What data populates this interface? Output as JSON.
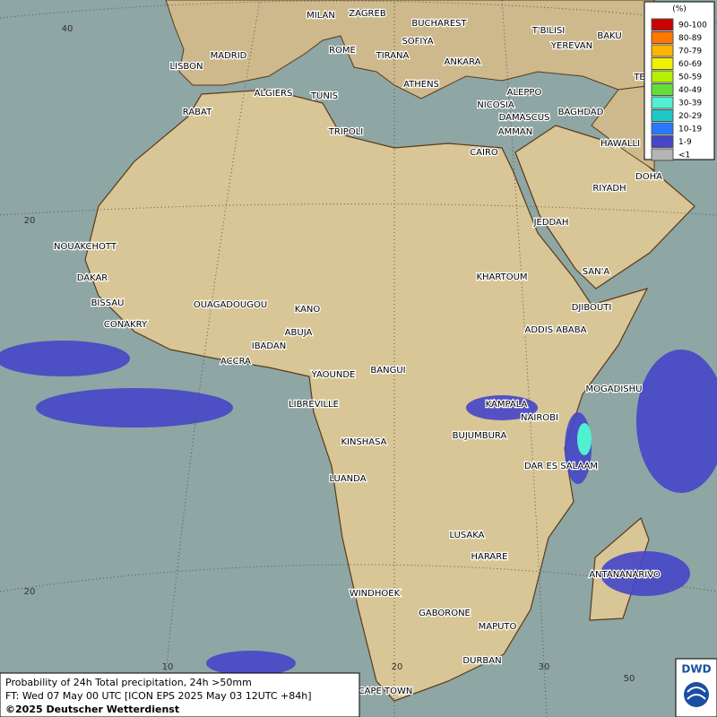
{
  "map": {
    "footer": {
      "line1": "Probability of 24h Total precipitation, 24h >50mm",
      "line2": "FT: Wed 07 May 00 UTC [ICON EPS 2025 May 03 12UTC +84h]",
      "line3": "©2025 Deutscher Wetterdienst"
    },
    "logo": "DWD",
    "legend": {
      "title": "(%)",
      "items": [
        {
          "label": "90-100",
          "color": "#c80000"
        },
        {
          "label": "80-89",
          "color": "#ff7800"
        },
        {
          "label": "70-79",
          "color": "#ffb400"
        },
        {
          "label": "60-69",
          "color": "#f0f000"
        },
        {
          "label": "50-59",
          "color": "#b4f000"
        },
        {
          "label": "40-49",
          "color": "#64dc3c"
        },
        {
          "label": "30-39",
          "color": "#50f0d0"
        },
        {
          "label": "20-29",
          "color": "#1ec8c8"
        },
        {
          "label": "10-19",
          "color": "#2878ff"
        },
        {
          "label": "1-9",
          "color": "#4646c8"
        },
        {
          "label": "<1",
          "color": "#b4b4b4"
        }
      ]
    },
    "grid_labels": [
      "40",
      "20",
      "20",
      "10",
      "20",
      "30",
      "50"
    ],
    "cities": [
      "MILAN",
      "ZAGREB",
      "BUCHAREST",
      "SOFIYA",
      "ROME",
      "TIRANA",
      "ANKARA",
      "T'BILISI",
      "BAKU",
      "YEREVAN",
      "TEHRA",
      "MADRID",
      "LISBON",
      "ALGIERS",
      "TUNIS",
      "ATHENS",
      "ALEPPO",
      "NICOSIA",
      "BAGHDAD",
      "DAMASCUS",
      "AMMAN",
      "RABAT",
      "TRIPOLI",
      "HAWALLI",
      "CAIRO",
      "DOHA",
      "RIYADH",
      "JEDDAH",
      "NOUAKCHOTT",
      "KHARTOUM",
      "SAN'A",
      "DAKAR",
      "BISSAU",
      "DJIBOUTI",
      "OUAGADOUGOU",
      "KANO",
      "CONAKRY",
      "ADDIS ABABA",
      "ABUJA",
      "IBADAN",
      "ACCRA",
      "YAOUNDE",
      "BANGUI",
      "MOGADISHU",
      "LIBREVILLE",
      "KAMPALA",
      "NAIROBI",
      "BUJUMBURA",
      "KINSHASA",
      "DAR ES SALAAM",
      "LUANDA",
      "LUSAKA",
      "HARARE",
      "ANTANANARIVO",
      "WINDHOEK",
      "GABORONE",
      "MAPUTO",
      "DURBAN",
      "CAPE TOWN"
    ]
  }
}
